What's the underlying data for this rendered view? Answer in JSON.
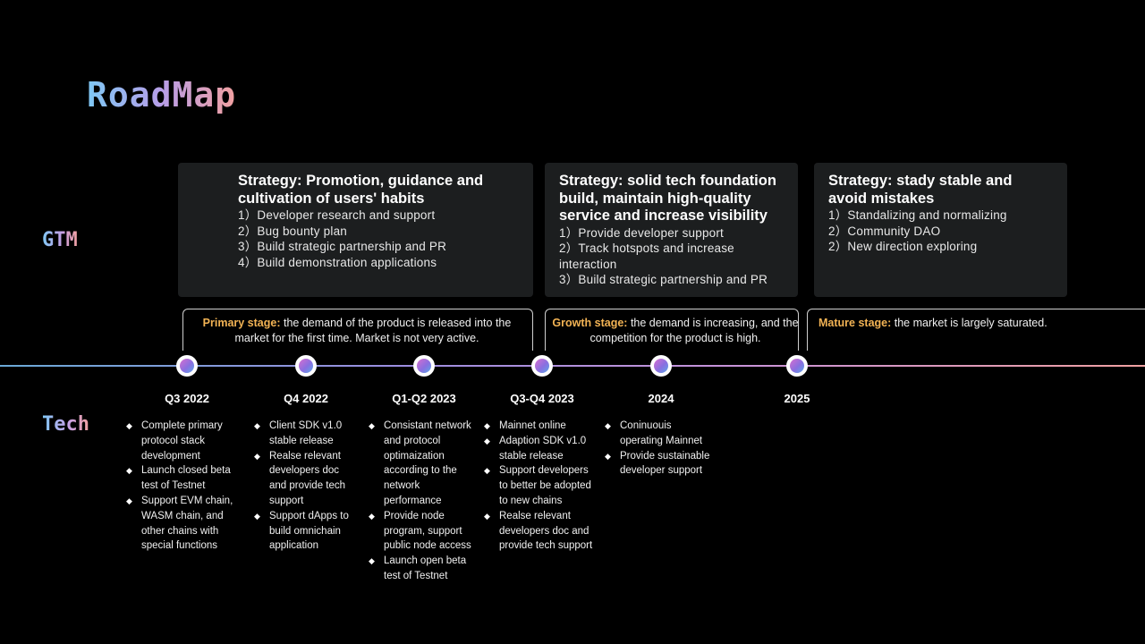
{
  "title": "RoadMap",
  "side_labels": {
    "gtm": "GTM",
    "tech": "Tech"
  },
  "gtm": [
    {
      "heading": "Strategy: Promotion, guidance and cultivation of users' habits",
      "items": [
        "1）Developer  research  and  support",
        "2）Bug  bounty  plan",
        "3）Build  strategic  partnership  and  PR",
        "4）Build  demonstration  applications"
      ]
    },
    {
      "heading": "Strategy: solid tech foundation build, maintain high-quality service and increase visibility",
      "items": [
        "1）Provide  developer  support",
        "2）Track  hotspots  and  increase interaction",
        "3）Build  strategic  partnership  and  PR"
      ]
    },
    {
      "heading": "Strategy: stady stable and avoid mistakes",
      "items": [
        "1）Standalizing  and  normalizing",
        "2）Community  DAO",
        "2）New  direction  exploring"
      ]
    }
  ],
  "stages": [
    {
      "label": "Primary stage:",
      "text": " the demand of the product is released into the market for the first time. Market is not very active."
    },
    {
      "label": "Growth stage:",
      "text": " the  demand is increasing, and the competition for the product is high."
    },
    {
      "label": "Mature stage:",
      "text": " the market is largely saturated."
    }
  ],
  "milestones": [
    "Q3 2022",
    "Q4 2022",
    "Q1-Q2 2023",
    "Q3-Q4 2023",
    "2024",
    "2025"
  ],
  "tech": [
    [
      "Complete primary protocol stack development",
      "Launch closed beta test of Testnet",
      "Support EVM chain, WASM chain, and other chains with special functions"
    ],
    [
      "Client SDK v1.0 stable release",
      "Realse relevant developers doc and provide tech support",
      "Support dApps to build omnichain application"
    ],
    [
      "Consistant network and protocol optimaization according to the network performance",
      "Provide node program, support public node access",
      "Launch open beta test of Testnet"
    ],
    [
      "Mainnet online",
      "Adaption SDK v1.0 stable release",
      "Support developers to better be adopted to new chains",
      "Realse relevant developers doc and provide tech support"
    ],
    [
      "Coninuouis operating Mainnet",
      "Provide sustainable developer support"
    ]
  ],
  "colors": {
    "stage_label": "#f2b354",
    "box_bg": "#1c1e1f",
    "background": "#000000"
  }
}
